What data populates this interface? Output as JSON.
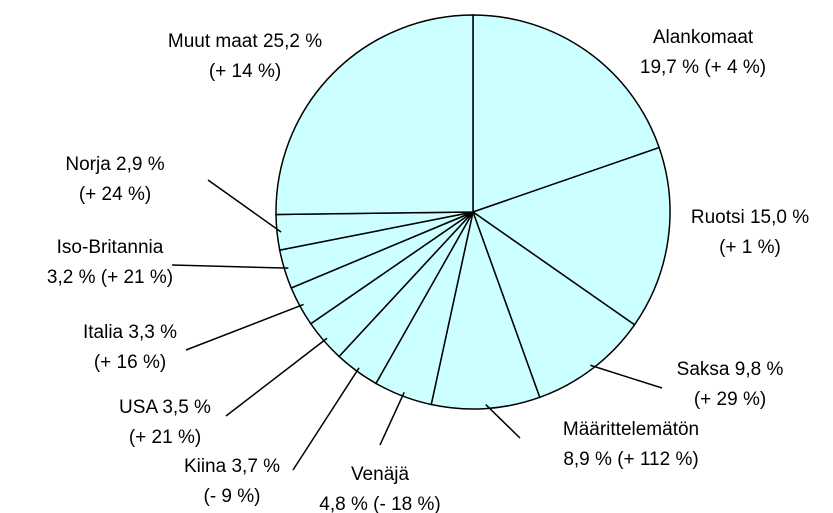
{
  "chart_data": {
    "type": "pie",
    "categories": [
      "Alankomaat",
      "Ruotsi",
      "Saksa",
      "Määrittelemätön",
      "Venäjä",
      "Kiina",
      "USA",
      "Italia",
      "Iso-Britannia",
      "Norja",
      "Muut maat"
    ],
    "values": [
      19.7,
      15.0,
      9.8,
      8.9,
      4.8,
      3.7,
      3.5,
      3.3,
      3.2,
      2.9,
      25.2
    ],
    "value_labels": [
      "19,7 %",
      "15,0 %",
      "9,8 %",
      "8,9 %",
      "4,8 %",
      "3,7 %",
      "3,5 %",
      "3,3 %",
      "3,2 %",
      "2,9 %",
      "25,2 %"
    ],
    "changes": [
      "(+ 4 %)",
      "(+ 1 %)",
      "(+ 29 %)",
      "(+ 112 %)",
      "(- 18 %)",
      "(- 9 %)",
      "(+ 21 %)",
      "(+ 16 %)",
      "(+ 21 %)",
      "(+ 24 %)",
      "(+ 14 %)"
    ],
    "color": "#ccffff"
  }
}
